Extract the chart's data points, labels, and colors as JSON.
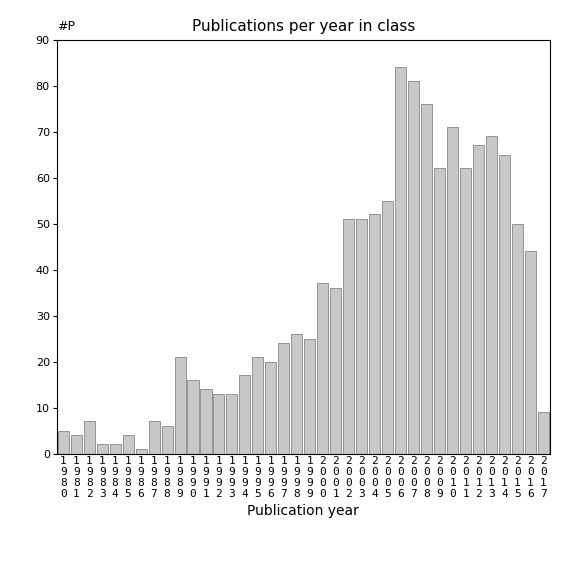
{
  "title": "Publications per year in class",
  "xlabel": "Publication year",
  "ylabel_text": "#P",
  "years": [
    1980,
    1981,
    1982,
    1983,
    1984,
    1985,
    1986,
    1987,
    1988,
    1989,
    1990,
    1991,
    1992,
    1993,
    1994,
    1995,
    1996,
    1997,
    1998,
    1999,
    2000,
    2001,
    2002,
    2003,
    2004,
    2005,
    2006,
    2007,
    2008,
    2009,
    2010,
    2011,
    2012,
    2013,
    2014,
    2015,
    2016,
    2017
  ],
  "values": [
    5,
    4,
    7,
    2,
    2,
    4,
    1,
    7,
    6,
    21,
    16,
    14,
    13,
    13,
    17,
    21,
    20,
    24,
    26,
    25,
    37,
    36,
    51,
    51,
    52,
    55,
    84,
    81,
    76,
    62,
    71,
    62,
    67,
    69,
    65,
    50,
    44,
    9
  ],
  "bar_color": "#c8c8c8",
  "bar_edgecolor": "#888888",
  "ylim": [
    0,
    90
  ],
  "yticks": [
    0,
    10,
    20,
    30,
    40,
    50,
    60,
    70,
    80,
    90
  ],
  "bg_color": "#ffffff",
  "title_fontsize": 11,
  "axis_label_fontsize": 10,
  "tick_fontsize": 8,
  "ylabel_fontsize": 9
}
